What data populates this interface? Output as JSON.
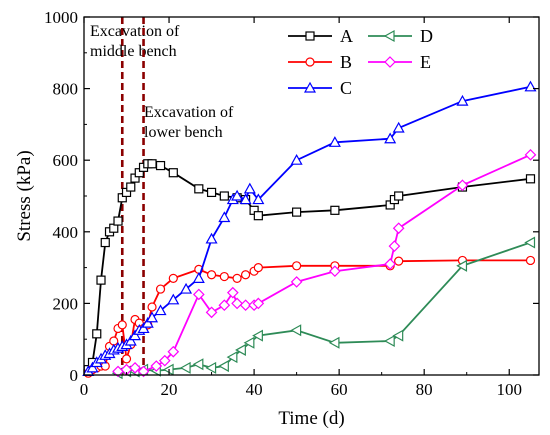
{
  "chart_data": {
    "type": "line",
    "xlabel": "Time (d)",
    "ylabel": "Stress (kPa)",
    "xlim": [
      0,
      107
    ],
    "ylim": [
      0,
      1000
    ],
    "xticks": [
      0,
      20,
      40,
      60,
      80,
      100
    ],
    "yticks": [
      0,
      200,
      400,
      600,
      800,
      1000
    ],
    "xtick_labels": [
      "0",
      "20",
      "40",
      "60",
      "80",
      "100"
    ],
    "ytick_labels": [
      "0",
      "200",
      "400",
      "600",
      "800",
      "1000"
    ],
    "legend_position": "top-right",
    "annotations": [
      {
        "text_lines": [
          "Excavation of",
          "middle bench"
        ],
        "x": 9
      },
      {
        "text_lines": [
          "Excavation of",
          "lower bench"
        ],
        "x": 14
      }
    ],
    "series": [
      {
        "name": "A",
        "color": "#000000",
        "marker": "square",
        "x": [
          1,
          2,
          3,
          4,
          5,
          6,
          7,
          8,
          9,
          10,
          11,
          12,
          13,
          14,
          15,
          16,
          18,
          21,
          27,
          30,
          33,
          36,
          38,
          40,
          41,
          50,
          59,
          72,
          73,
          74,
          89,
          105
        ],
        "y": [
          15,
          35,
          115,
          265,
          370,
          400,
          410,
          430,
          495,
          510,
          525,
          550,
          565,
          580,
          590,
          590,
          585,
          565,
          520,
          510,
          500,
          495,
          490,
          460,
          445,
          455,
          460,
          475,
          490,
          500,
          525,
          548
        ]
      },
      {
        "name": "B",
        "color": "#ff0000",
        "marker": "circle",
        "x": [
          1,
          2,
          3,
          4,
          5,
          6,
          7,
          8,
          9,
          10,
          11,
          12,
          13,
          14,
          15,
          16,
          18,
          21,
          27,
          30,
          33,
          36,
          38,
          40,
          41,
          50,
          59,
          72,
          74,
          89,
          105
        ],
        "y": [
          5,
          15,
          20,
          25,
          25,
          80,
          95,
          130,
          140,
          45,
          85,
          155,
          145,
          130,
          140,
          190,
          240,
          270,
          295,
          280,
          275,
          270,
          280,
          290,
          300,
          305,
          305,
          305,
          318,
          320,
          320
        ]
      },
      {
        "name": "C",
        "color": "#0000ff",
        "marker": "triangle-up",
        "x": [
          1,
          2,
          3,
          4,
          5,
          6,
          7,
          8,
          9,
          10,
          11,
          12,
          13,
          14,
          15,
          16,
          18,
          21,
          24,
          27,
          30,
          33,
          35,
          36,
          38,
          39,
          41,
          50,
          59,
          72,
          74,
          89,
          105
        ],
        "y": [
          10,
          20,
          35,
          45,
          55,
          60,
          70,
          75,
          80,
          85,
          95,
          110,
          125,
          130,
          145,
          160,
          180,
          210,
          240,
          270,
          380,
          440,
          490,
          500,
          490,
          520,
          490,
          600,
          650,
          660,
          690,
          765,
          805
        ]
      },
      {
        "name": "D",
        "color": "#2e8b57",
        "marker": "triangle-left",
        "x": [
          8,
          10,
          12,
          14,
          17,
          20,
          24,
          27,
          30,
          33,
          35,
          37,
          39,
          41,
          50,
          59,
          72,
          74,
          89,
          105
        ],
        "y": [
          5,
          10,
          10,
          15,
          12,
          15,
          20,
          30,
          20,
          25,
          50,
          70,
          90,
          110,
          125,
          90,
          95,
          110,
          305,
          370
        ]
      },
      {
        "name": "E",
        "color": "#ff00ff",
        "marker": "diamond",
        "x": [
          8,
          10,
          12,
          14,
          17,
          19,
          21,
          27,
          30,
          33,
          35,
          36,
          38,
          40,
          41,
          50,
          59,
          72,
          73,
          74,
          89,
          105
        ],
        "y": [
          10,
          15,
          20,
          10,
          25,
          40,
          65,
          225,
          175,
          195,
          230,
          200,
          195,
          195,
          200,
          260,
          290,
          310,
          360,
          410,
          530,
          615
        ]
      }
    ]
  }
}
